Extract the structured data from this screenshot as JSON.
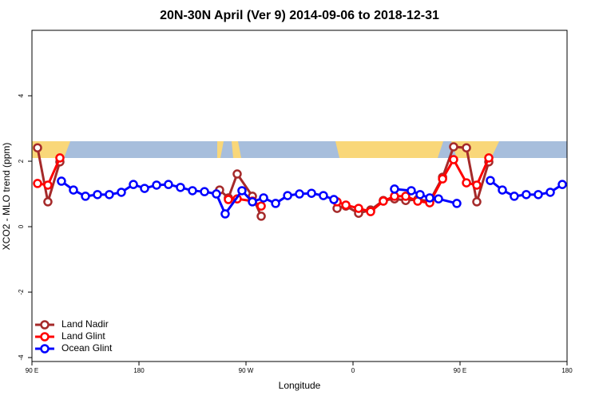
{
  "chart_data": {
    "type": "line",
    "title": "20N-30N April (Ver 9)   2014-09-06 to 2018-12-31",
    "x_label": "Longitude",
    "y_label": "XCO2 - MLO trend (ppm)",
    "xlim": [
      90,
      540
    ],
    "xticks": [
      {
        "value": 90,
        "label": "90 E"
      },
      180,
      {
        "value": 270,
        "label": "90 W"
      },
      {
        "value": 360,
        "label": "0"
      },
      {
        "value": 450,
        "label": "90 E"
      },
      180
    ],
    "ylim": [
      -4.12,
      6.0
    ],
    "yticks": [
      -4,
      -2,
      0,
      2,
      4
    ],
    "legend": "bottomleft",
    "series": [
      {
        "name": "Land Nadir",
        "color": "#a52a2a",
        "x": [
          94.7,
          103.4,
          113.5,
          null,
          247.8,
          255.2,
          262.6,
          275.4,
          282.8,
          null,
          346.6,
          354,
          364.7,
          374.8,
          385.5,
          394.9,
          404.3,
          414.4,
          424.5,
          435.3,
          444.6,
          455.4,
          464.1,
          474.2
        ],
        "values": [
          2.41,
          0.76,
          1.98,
          null,
          1.12,
          0.88,
          1.61,
          0.93,
          0.32,
          null,
          0.56,
          0.63,
          0.41,
          0.51,
          0.8,
          0.85,
          0.8,
          0.83,
          0.78,
          1.51,
          2.44,
          2.41,
          0.76,
          1.98
        ]
      },
      {
        "name": "Land Glint",
        "color": "#ff0000",
        "x": [
          94.7,
          103.4,
          113.5,
          null,
          255.2,
          262.6,
          275.4,
          282.8,
          null,
          346.6,
          354,
          364.7,
          374.8,
          385.5,
          394.9,
          404.3,
          414.4,
          424.5,
          435.3,
          444.6,
          455.4,
          464.1,
          474.2
        ],
        "values": [
          1.32,
          1.27,
          2.1,
          null,
          0.83,
          0.85,
          0.78,
          0.63,
          null,
          0.76,
          0.66,
          0.56,
          0.46,
          0.78,
          0.93,
          0.93,
          0.78,
          0.73,
          1.46,
          2.05,
          1.34,
          1.27,
          2.1
        ]
      },
      {
        "name": "Ocean Glint",
        "color": "#0000ff",
        "x": [
          114.8,
          124.9,
          135.0,
          145.1,
          155.1,
          165.2,
          175.3,
          184.7,
          194.8,
          204.8,
          214.9,
          225.0,
          235.1,
          245.1,
          252.5,
          266.6,
          275.4,
          284.8,
          294.9,
          305.0,
          315.0,
          325.1,
          335.1,
          343.9,
          null,
          394.9,
          409.0,
          416.4,
          424.5,
          431.9,
          447.3,
          null,
          475.5,
          485.6,
          495.6,
          505.7,
          515.8,
          525.9,
          536.0
        ],
        "values": [
          1.39,
          1.12,
          0.93,
          0.98,
          0.98,
          1.05,
          1.29,
          1.17,
          1.27,
          1.29,
          1.2,
          1.1,
          1.07,
          1.0,
          0.39,
          1.1,
          0.76,
          0.88,
          0.71,
          0.95,
          1.0,
          1.02,
          0.95,
          0.83,
          null,
          1.15,
          1.1,
          0.98,
          0.88,
          0.85,
          0.71,
          null,
          1.41,
          1.12,
          0.93,
          0.98,
          0.98,
          1.05,
          1.29
        ]
      }
    ]
  }
}
